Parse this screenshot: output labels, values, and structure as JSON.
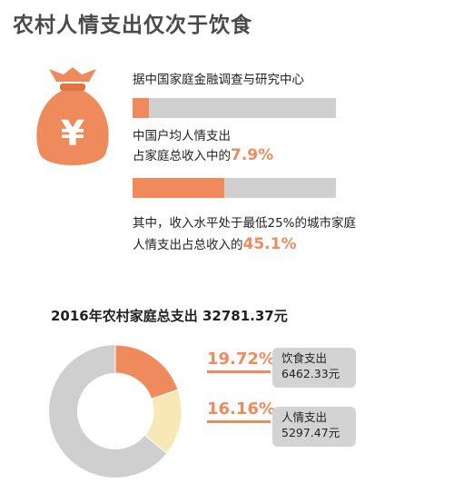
{
  "title": "农村人情支出仅次于饮食",
  "section1": {
    "source": "据中国家庭金融调查与研究中心",
    "stat1": {
      "line1": "中国户均人情支出",
      "line2_prefix": "占家庭总收入中的",
      "value_text": "7.9%",
      "value": 7.9
    },
    "stat2": {
      "line1": "其中，收入水平处于最低25%的城市家庭",
      "line2_prefix": "人情支出占总收入的",
      "value_text": "45.1%",
      "value": 45.1
    }
  },
  "section2": {
    "title": "2016年农村家庭总支出 32781.37元"
  },
  "icon": "money-bag-yuan-icon",
  "icon_symbol": "¥",
  "colors": {
    "accent": "#ef8a5d",
    "secondary": "#f8e8b5",
    "neutral": "#cfcfcf"
  },
  "chart_data": [
    {
      "type": "bar",
      "categories": [
        "中国户均人情支出占家庭总收入",
        "最低25%城市家庭人情支出占总收入"
      ],
      "values": [
        7.9,
        45.1
      ],
      "ylim": [
        0,
        100
      ]
    },
    {
      "type": "pie",
      "title": "2016年农村家庭总支出 32781.37元",
      "slices": [
        {
          "label": "饮食支出",
          "percent_text": "19.72%",
          "percent": 19.72,
          "amount": "6462.33元"
        },
        {
          "label": "人情支出",
          "percent_text": "16.16%",
          "percent": 16.16,
          "amount": "5297.47元"
        }
      ]
    }
  ]
}
